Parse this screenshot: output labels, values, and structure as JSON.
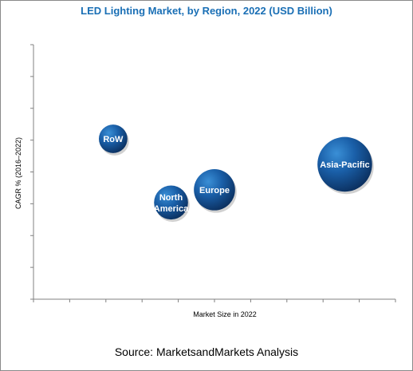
{
  "chart_data": {
    "type": "bubble",
    "title": "LED Lighting Market, by Region, 2022 (USD Billion)",
    "xlabel": "Market Size in 2022",
    "ylabel": "CAGR % (2016–2022)",
    "xlim": [
      0,
      10
    ],
    "ylim": [
      0,
      10
    ],
    "grid": false,
    "tick_labels_shown": false,
    "series": [
      {
        "name": "RoW",
        "label_lines": [
          "RoW"
        ],
        "x": 2.2,
        "y": 6.3,
        "size": 0.6
      },
      {
        "name": "North America",
        "label_lines": [
          "North",
          "America"
        ],
        "x": 3.8,
        "y": 3.8,
        "size": 0.85
      },
      {
        "name": "Europe",
        "label_lines": [
          "Europe"
        ],
        "x": 5.0,
        "y": 4.3,
        "size": 1.25
      },
      {
        "name": "Asia-Pacific",
        "label_lines": [
          "Asia-Pacific"
        ],
        "x": 8.6,
        "y": 5.3,
        "size": 2.2
      }
    ],
    "colors": {
      "bubble_light": "#3a8fd6",
      "bubble_mid": "#1a5fa8",
      "bubble_dark": "#0b2f5e"
    }
  },
  "source": "Source: MarketsandMarkets Analysis"
}
